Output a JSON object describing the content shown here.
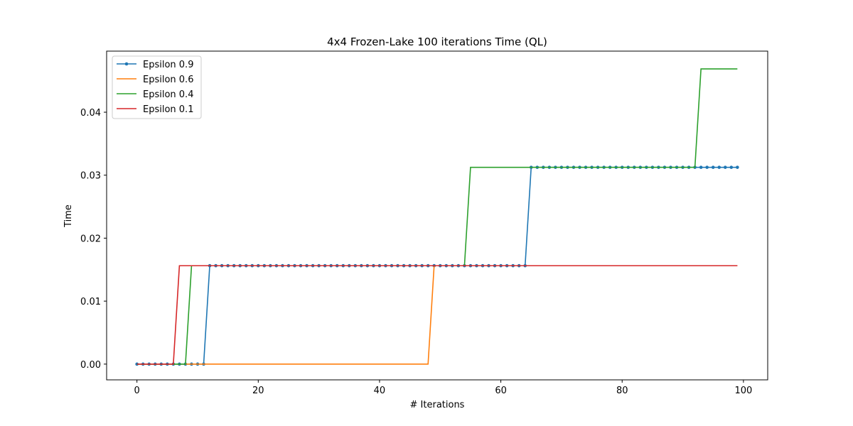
{
  "chart_data": {
    "type": "line",
    "title": "4x4 Frozen-Lake 100 iterations  Time (QL)",
    "xlabel": "# Iterations",
    "ylabel": "Time",
    "xlim": [
      -5,
      104
    ],
    "ylim": [
      -0.0025,
      0.0497
    ],
    "xticks": [
      0,
      20,
      40,
      60,
      80,
      100
    ],
    "yticks": [
      0.0,
      0.01,
      0.02,
      0.03,
      0.04
    ],
    "xtick_labels": [
      "0",
      "20",
      "40",
      "60",
      "80",
      "100"
    ],
    "ytick_labels": [
      "0.00",
      "0.01",
      "0.02",
      "0.03",
      "0.04"
    ],
    "grid": false,
    "legend_position": "top-left",
    "x_range": [
      0,
      99
    ],
    "series": [
      {
        "name": "Epsilon 0.9",
        "color": "#1f77b4",
        "marker": "dot",
        "steps": [
          [
            0,
            0.0
          ],
          [
            12,
            0.015625
          ],
          [
            65,
            0.03125
          ]
        ]
      },
      {
        "name": "Epsilon 0.6",
        "color": "#ff7f0e",
        "marker": "none",
        "steps": [
          [
            0,
            0.0
          ],
          [
            49,
            0.015625
          ]
        ]
      },
      {
        "name": "Epsilon 0.4",
        "color": "#2ca02c",
        "marker": "none",
        "steps": [
          [
            0,
            0.0
          ],
          [
            9,
            0.015625
          ],
          [
            55,
            0.03125
          ],
          [
            93,
            0.046875
          ]
        ]
      },
      {
        "name": "Epsilon 0.1",
        "color": "#d62728",
        "marker": "none",
        "steps": [
          [
            0,
            0.0
          ],
          [
            7,
            0.015625
          ]
        ]
      }
    ]
  }
}
